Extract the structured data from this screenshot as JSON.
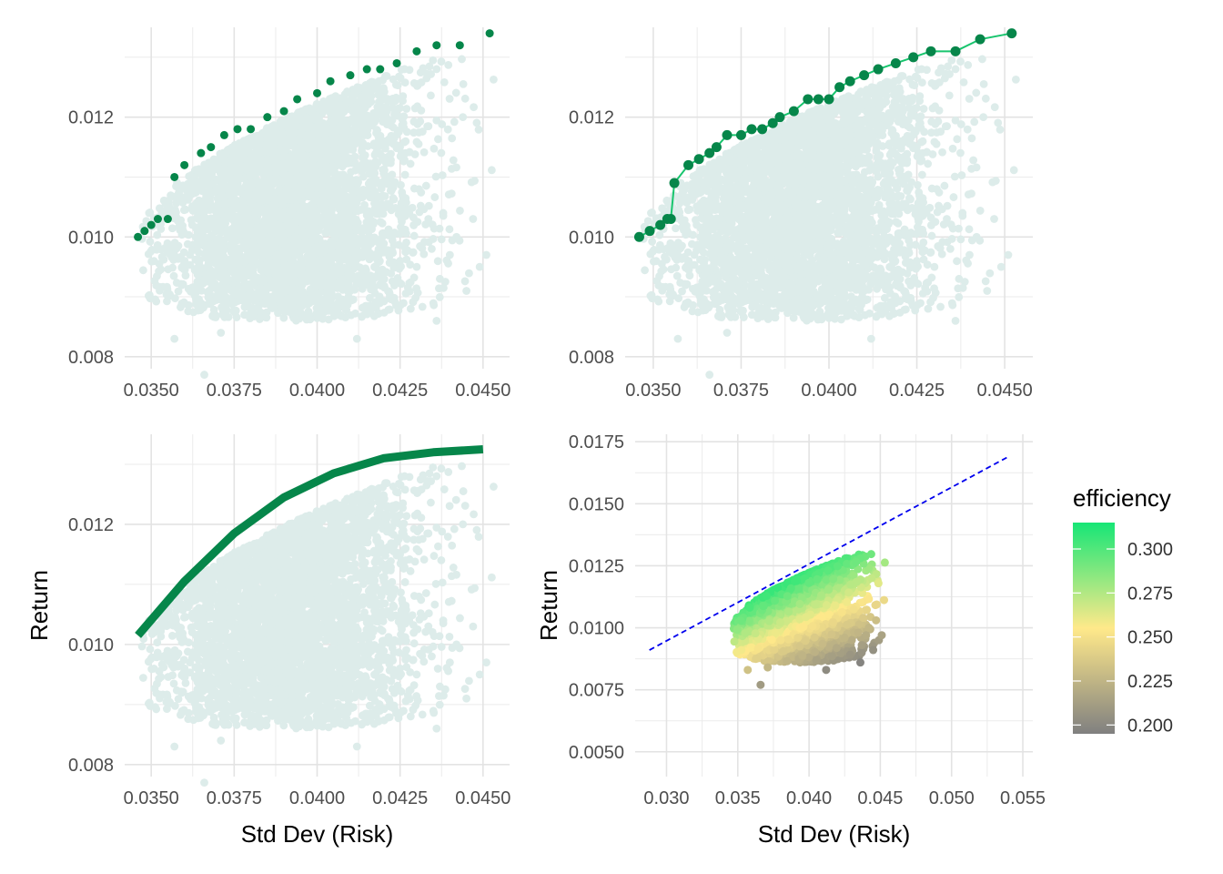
{
  "chart_data": [
    {
      "type": "scatter",
      "panel": "top-left",
      "xlabel": "",
      "ylabel": "",
      "xlim": [
        0.0342,
        0.0458
      ],
      "ylim": [
        0.0078,
        0.0135
      ],
      "x_ticks": [
        "0.0350",
        "0.0375",
        "0.0400",
        "0.0425",
        "0.0450"
      ],
      "y_ticks": [
        "0.008",
        "0.010",
        "0.012"
      ],
      "grid": true,
      "series": [
        {
          "role": "simulated portfolios",
          "color": "#ddecea",
          "cloud": "dense random portfolio cloud spanning x 0.0347-0.0455, y 0.0077-0.0131"
        },
        {
          "role": "efficient frontier points",
          "color": "#06864a",
          "x": [
            0.0346,
            0.0348,
            0.035,
            0.0352,
            0.0355,
            0.0357,
            0.036,
            0.0365,
            0.0368,
            0.0372,
            0.0376,
            0.038,
            0.0385,
            0.039,
            0.0394,
            0.04,
            0.0404,
            0.041,
            0.0415,
            0.0419,
            0.0424,
            0.043,
            0.0436,
            0.0443,
            0.0452
          ],
          "y": [
            0.01,
            0.0101,
            0.0102,
            0.0103,
            0.0103,
            0.011,
            0.0112,
            0.0114,
            0.0115,
            0.0117,
            0.0118,
            0.0118,
            0.012,
            0.0121,
            0.0123,
            0.0124,
            0.0126,
            0.0127,
            0.0128,
            0.0128,
            0.0129,
            0.0131,
            0.0132,
            0.0132,
            0.0134
          ]
        }
      ]
    },
    {
      "type": "line",
      "panel": "top-right",
      "xlabel": "",
      "ylabel": "",
      "xlim": [
        0.0342,
        0.0458
      ],
      "ylim": [
        0.0078,
        0.0135
      ],
      "x_ticks": [
        "0.0350",
        "0.0375",
        "0.0400",
        "0.0425",
        "0.0450"
      ],
      "y_ticks": [
        "0.008",
        "0.010",
        "0.012"
      ],
      "grid": true,
      "series": [
        {
          "role": "simulated portfolios",
          "color": "#ddecea",
          "cloud": "dense random portfolio cloud"
        },
        {
          "role": "efficient frontier path",
          "color": "#18c56e",
          "point_color": "#06864a",
          "x": [
            0.0346,
            0.0349,
            0.0352,
            0.0354,
            0.0355,
            0.0356,
            0.036,
            0.0363,
            0.0366,
            0.0368,
            0.0371,
            0.0375,
            0.0378,
            0.0381,
            0.0384,
            0.0386,
            0.039,
            0.0394,
            0.0397,
            0.04,
            0.0403,
            0.0406,
            0.041,
            0.0414,
            0.0419,
            0.0424,
            0.0429,
            0.0436,
            0.0443,
            0.0452
          ],
          "y": [
            0.01,
            0.0101,
            0.0102,
            0.0103,
            0.0103,
            0.0109,
            0.0112,
            0.0113,
            0.0114,
            0.0115,
            0.0117,
            0.0117,
            0.0118,
            0.0118,
            0.0119,
            0.012,
            0.0121,
            0.0123,
            0.0123,
            0.0123,
            0.0125,
            0.0126,
            0.0127,
            0.0128,
            0.0129,
            0.013,
            0.0131,
            0.0131,
            0.0133,
            0.0134
          ]
        }
      ]
    },
    {
      "type": "line",
      "panel": "bottom-left",
      "xlabel": "Std Dev (Risk)",
      "ylabel": "Return",
      "xlim": [
        0.0342,
        0.0458
      ],
      "ylim": [
        0.0078,
        0.0135
      ],
      "x_ticks": [
        "0.0350",
        "0.0375",
        "0.0400",
        "0.0425",
        "0.0450"
      ],
      "y_ticks": [
        "0.008",
        "0.010",
        "0.012"
      ],
      "grid": true,
      "series": [
        {
          "role": "simulated portfolios",
          "color": "#ddecea",
          "cloud": "dense random portfolio cloud"
        },
        {
          "role": "fitted frontier curve",
          "color": "#06864a",
          "x": [
            0.0346,
            0.036,
            0.0375,
            0.039,
            0.0405,
            0.042,
            0.0435,
            0.045
          ],
          "y": [
            0.01015,
            0.01105,
            0.01185,
            0.01245,
            0.01285,
            0.0131,
            0.0132,
            0.01325
          ]
        }
      ]
    },
    {
      "type": "scatter",
      "panel": "bottom-right",
      "xlabel": "Std Dev (Risk)",
      "ylabel": "Return",
      "xlim": [
        0.0278,
        0.0557
      ],
      "ylim": [
        0.004,
        0.0178
      ],
      "x_ticks": [
        "0.030",
        "0.035",
        "0.040",
        "0.045",
        "0.050",
        "0.055"
      ],
      "y_ticks": [
        "0.0050",
        "0.0075",
        "0.0100",
        "0.0125",
        "0.0150",
        "0.0175"
      ],
      "grid": true,
      "color_by": "efficiency",
      "series": [
        {
          "role": "simulated portfolios colored by efficiency",
          "cloud": "portfolio cloud x 0.0345-0.0455, y 0.0077-0.0134"
        },
        {
          "role": "capital market line",
          "color": "#0000ee",
          "style": "dashed",
          "x": [
            0.0288,
            0.054
          ],
          "y": [
            0.0091,
            0.0169
          ]
        }
      ],
      "legend": {
        "title": "efficiency",
        "placement": "right",
        "range": [
          0.195,
          0.315
        ],
        "ticks": [
          "0.300",
          "0.275",
          "0.250",
          "0.225",
          "0.200"
        ],
        "colors": [
          "#808080",
          "#ffe98a",
          "#17e676"
        ]
      }
    }
  ]
}
